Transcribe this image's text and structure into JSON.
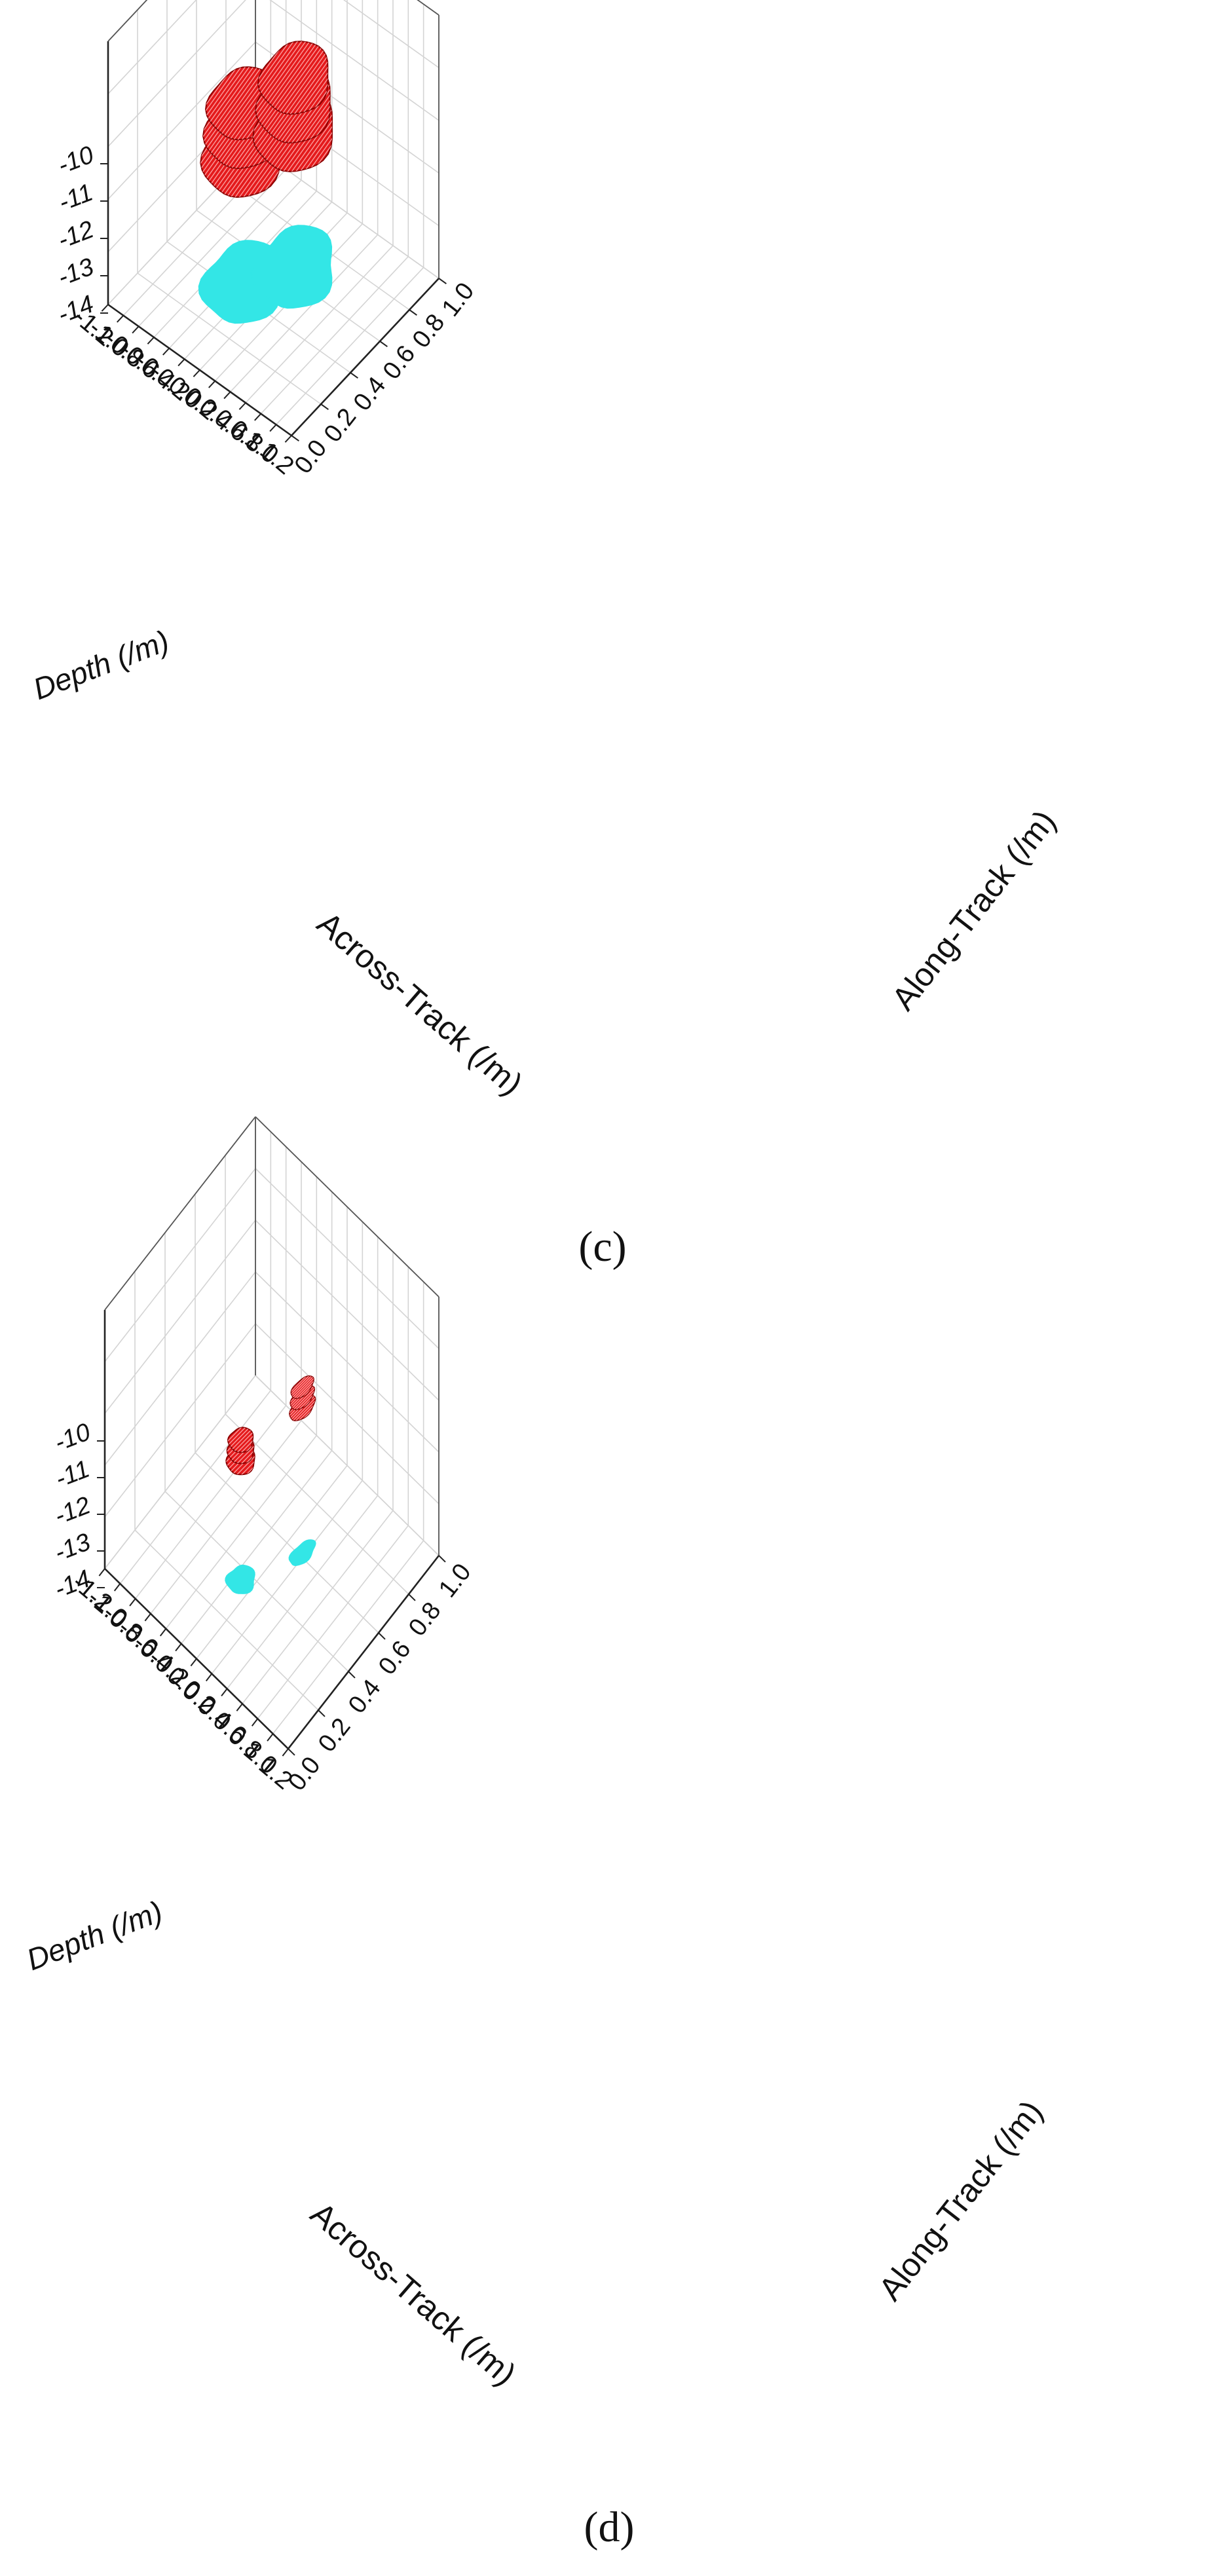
{
  "chart_data": [
    {
      "type": "scatter",
      "panel_label": "(c)",
      "axes": {
        "x": {
          "label": "Across-Track (/m)",
          "ticks": [
            "-1.2",
            "-1.0",
            "-0.8",
            "-0.6",
            "-0.4",
            "-0.2",
            "0.0",
            "0.2",
            "0.4",
            "0.6",
            "0.8",
            "1.0",
            "1.2"
          ],
          "range": [
            -1.2,
            1.2
          ]
        },
        "y": {
          "label": "Along-Track (/m)",
          "ticks": [
            "0.0",
            "0.2",
            "0.4",
            "0.6",
            "0.8",
            "1.0"
          ],
          "range": [
            0.0,
            1.0
          ]
        },
        "z": {
          "label": "Depth (/m)",
          "ticks": [
            "-10",
            "-11",
            "-12",
            "-13",
            "-14"
          ],
          "range": [
            -15,
            -10
          ]
        }
      },
      "grid": true,
      "series": [
        {
          "kind": "voxel-cluster",
          "color": "#e41a1c",
          "depth_range": [
            -12.6,
            -11.6
          ],
          "x_range": [
            -0.7,
            0.1
          ],
          "y_range": [
            0.25,
            0.65
          ]
        },
        {
          "kind": "voxel-cluster",
          "color": "#e41a1c",
          "depth_range": [
            -12.4,
            -11.4
          ],
          "x_range": [
            -0.4,
            0.4
          ],
          "y_range": [
            0.45,
            0.85
          ]
        },
        {
          "kind": "projection",
          "color": "#33e6e6",
          "depth": -15,
          "x_range": [
            -0.7,
            0.1
          ],
          "y_range": [
            0.25,
            0.65
          ]
        },
        {
          "kind": "projection",
          "color": "#33e6e6",
          "depth": -15,
          "x_range": [
            -0.4,
            0.4
          ],
          "y_range": [
            0.45,
            0.85
          ]
        }
      ]
    },
    {
      "type": "scatter",
      "panel_label": "(d)",
      "axes": {
        "x": {
          "label": "Across-Track (/m)",
          "ticks": [
            "-1.2",
            "-1.0",
            "-0.8",
            "-0.6",
            "-0.4",
            "-0.2",
            "0.0",
            "0.2",
            "0.4",
            "0.6",
            "0.8",
            "1.0",
            "1.2"
          ],
          "range": [
            -1.2,
            1.2
          ]
        },
        "y": {
          "label": "Along-Track (/m)",
          "ticks": [
            "0.0",
            "0.2",
            "0.4",
            "0.6",
            "0.8",
            "1.0"
          ],
          "range": [
            0.0,
            1.0
          ]
        },
        "z": {
          "label": "Depth (/m)",
          "ticks": [
            "-10",
            "-11",
            "-12",
            "-13",
            "-14"
          ],
          "range": [
            -15,
            -10
          ]
        }
      },
      "grid": true,
      "series": [
        {
          "kind": "voxel-cluster",
          "color": "#e41a1c",
          "depth_range": [
            -12.7,
            -12.3
          ],
          "x_range": [
            -0.25,
            0.0
          ],
          "y_range": [
            0.3,
            0.42
          ]
        },
        {
          "kind": "voxel-cluster",
          "color": "#e41a1c",
          "depth_range": [
            -12.2,
            -11.8
          ],
          "x_range": [
            0.1,
            0.25
          ],
          "y_range": [
            0.55,
            0.68
          ]
        },
        {
          "kind": "projection",
          "color": "#33e6e6",
          "depth": -15,
          "x_range": [
            -0.25,
            0.0
          ],
          "y_range": [
            0.3,
            0.42
          ]
        },
        {
          "kind": "projection",
          "color": "#33e6e6",
          "depth": -15,
          "x_range": [
            0.1,
            0.25
          ],
          "y_range": [
            0.55,
            0.68
          ]
        }
      ]
    }
  ]
}
